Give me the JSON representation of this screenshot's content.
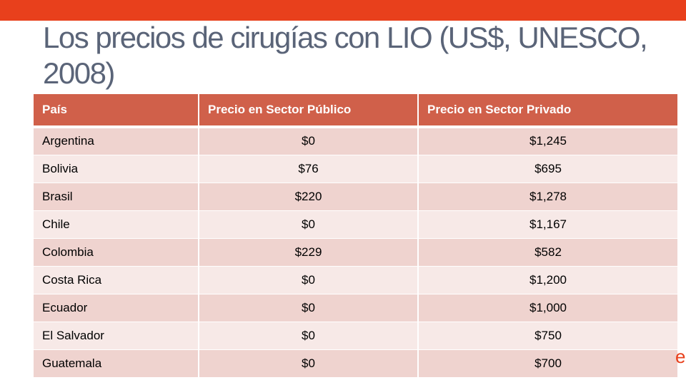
{
  "slide": {
    "title": "Los precios de cirugías con LIO (US$, UNESCO, 2008)",
    "accent_color": "#e8401c",
    "header_color": "#d0604a"
  },
  "table": {
    "headers": [
      "País",
      "Precio en Sector Público",
      "Precio en Sector Privado"
    ],
    "rows": [
      [
        "Argentina",
        "$0",
        "$1,245"
      ],
      [
        "Bolivia",
        "$76",
        "$695"
      ],
      [
        "Brasil",
        "$220",
        "$1,278"
      ],
      [
        "Chile",
        "$0",
        "$1,167"
      ],
      [
        "Colombia",
        "$229",
        "$582"
      ],
      [
        "Costa Rica",
        "$0",
        "$1,200"
      ],
      [
        "Ecuador",
        "$0",
        "$1,000"
      ],
      [
        "El Salvador",
        "$0",
        "$750"
      ],
      [
        "Guatemala",
        "$0",
        "$700"
      ]
    ]
  }
}
